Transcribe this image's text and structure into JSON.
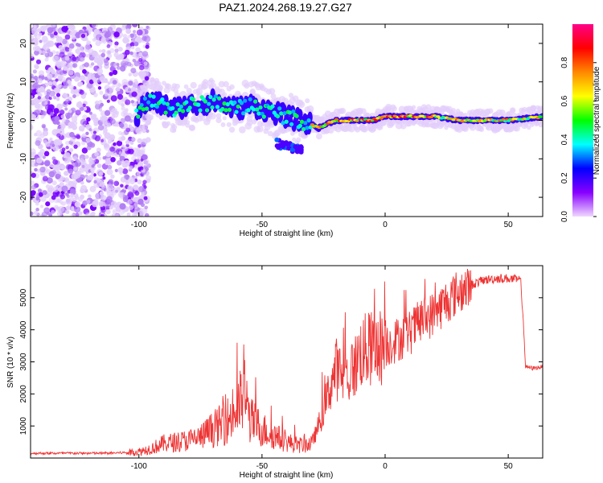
{
  "title": "PAZ1.2024.268.19.27.G27",
  "chart_data": [
    {
      "type": "heatmap",
      "xlabel": "Height of straight line (km)",
      "ylabel": "Frequency (Hz)",
      "xlim": [
        -144,
        64
      ],
      "ylim": [
        -25,
        25
      ],
      "xticks": [
        -100,
        -50,
        0,
        50
      ],
      "yticks": [
        -20,
        -10,
        0,
        10,
        20
      ],
      "colorbar": {
        "label": "Normalized spectral amplitude",
        "range": [
          0,
          1
        ],
        "ticks": [
          0.0,
          0.2,
          0.4,
          0.6,
          0.8
        ],
        "tick_labels": [
          "0.0",
          "0.2",
          "0.4",
          "0.6",
          "0.8"
        ],
        "colormap": [
          "#f0d8ff",
          "#8800ff",
          "#0000ff",
          "#00ffff",
          "#00ff00",
          "#ffff00",
          "#ff8800",
          "#ff0000",
          "#ff0088"
        ]
      },
      "ridge": {
        "description_values": "dominant frequency (Hz) vs height (km)",
        "points": [
          [
            -100,
            3
          ],
          [
            -95,
            5
          ],
          [
            -90,
            4
          ],
          [
            -85,
            3
          ],
          [
            -80,
            4
          ],
          [
            -75,
            4
          ],
          [
            -70,
            5
          ],
          [
            -65,
            4
          ],
          [
            -60,
            3
          ],
          [
            -55,
            4
          ],
          [
            -50,
            3
          ],
          [
            -45,
            2
          ],
          [
            -40,
            1
          ],
          [
            -35,
            0
          ],
          [
            -30,
            -1
          ],
          [
            -27,
            -2
          ],
          [
            -24,
            -1
          ],
          [
            -20,
            0
          ],
          [
            -15,
            0
          ],
          [
            -10,
            0
          ],
          [
            -5,
            0
          ],
          [
            0,
            1
          ],
          [
            5,
            1
          ],
          [
            10,
            1
          ],
          [
            20,
            1
          ],
          [
            30,
            0
          ],
          [
            40,
            0
          ],
          [
            50,
            0
          ],
          [
            64,
            1
          ]
        ]
      },
      "secondary_feature": {
        "x_range": [
          -44,
          -33
        ],
        "freq": [
          -6,
          -8
        ]
      },
      "noise_region": {
        "x_range": [
          -144,
          -100
        ],
        "freq_range": [
          -25,
          25
        ]
      }
    },
    {
      "type": "line",
      "xlabel": "Height of straight line (km)",
      "ylabel": "SNR (10 * v/v)",
      "xlim": [
        -144,
        64
      ],
      "ylim": [
        0,
        6000
      ],
      "xticks": [
        -100,
        -50,
        0,
        50
      ],
      "yticks": [
        1000,
        2000,
        3000,
        4000,
        5000
      ],
      "color": "#ee3333",
      "series": [
        {
          "x": [
            -144,
            -130,
            -115,
            -105,
            -100,
            -95,
            -90,
            -85,
            -80,
            -75,
            -70,
            -65,
            -60,
            -57,
            -55,
            -50,
            -45,
            -40,
            -35,
            -30,
            -28,
            -25,
            -22,
            -20,
            -18,
            -15,
            -12,
            -10,
            -5,
            0,
            5,
            10,
            15,
            20,
            25,
            30,
            35,
            40,
            45,
            50,
            55,
            56,
            57,
            60,
            64
          ],
          "y": [
            150,
            150,
            150,
            170,
            200,
            300,
            450,
            500,
            550,
            650,
            900,
            1100,
            1500,
            2000,
            1200,
            900,
            700,
            500,
            400,
            450,
            800,
            1500,
            2300,
            2800,
            2600,
            2500,
            2900,
            3300,
            3400,
            3500,
            3700,
            3900,
            4300,
            4500,
            4900,
            5200,
            5400,
            5550,
            5600,
            5600,
            5550,
            4500,
            2850,
            2800,
            2850
          ]
        }
      ]
    }
  ]
}
